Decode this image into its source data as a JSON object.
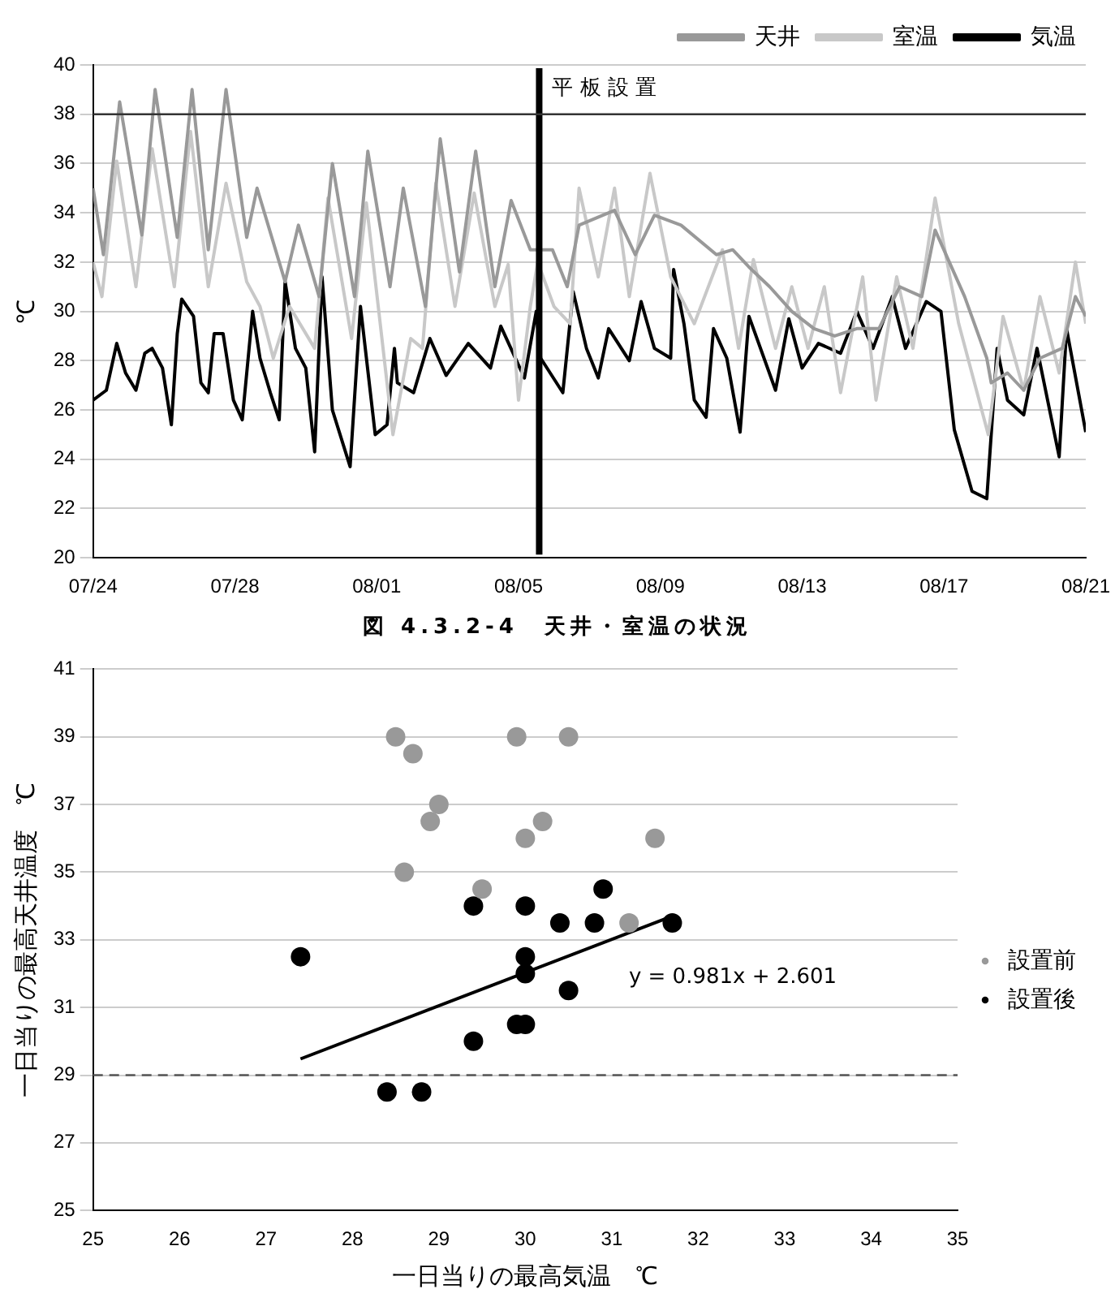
{
  "chart_data": [
    {
      "type": "line",
      "ylabel": "℃",
      "xlim": [
        "--07-24",
        "--08-21"
      ],
      "xticks": [
        {
          "value": "--07-24",
          "label": "07/24"
        },
        {
          "value": "--07-28",
          "label": "07/28"
        },
        {
          "value": "--08-01",
          "label": "08/01"
        },
        {
          "value": "--08-05",
          "label": "08/05"
        },
        {
          "value": "--08-09",
          "label": "08/09"
        },
        {
          "value": "--08-13",
          "label": "08/13"
        },
        {
          "value": "--08-17",
          "label": "08/17"
        },
        {
          "value": "--08-21",
          "label": "08/21"
        }
      ],
      "ylim": [
        20,
        40
      ],
      "yticks": [
        20,
        22,
        24,
        26,
        28,
        30,
        32,
        34,
        36,
        38,
        40
      ],
      "grid": "y",
      "legend": "top right",
      "ref_lines": [
        {
          "axis": "x",
          "value": "--08-05T14:00",
          "label": "平板設置",
          "color": "#000000"
        },
        {
          "axis": "y",
          "value": 38,
          "color": "#333333"
        }
      ],
      "annotations": [
        "図 4.3.2-4　天井・室温の状況"
      ],
      "series": [
        {
          "name": "天井",
          "color": "#999999",
          "x": [
            "--07-24T00:00",
            "--07-24T07:00",
            "--07-24T18:00",
            "--07-25T09:00",
            "--07-25T18:00",
            "--07-26T09:00",
            "--07-26T19:00",
            "--07-27T06:00",
            "--07-27T18:00",
            "--07-28T08:00",
            "--07-28T15:00",
            "--07-29T10:00",
            "--07-29T19:00",
            "--07-30T09:00",
            "--07-30T18:00",
            "--07-31T09:00",
            "--07-31T18:00",
            "--08-01T09:00",
            "--08-01T18:00",
            "--08-02T09:00",
            "--08-02T19:00",
            "--08-03T08:00",
            "--08-03T19:00",
            "--08-04T08:00",
            "--08-04T19:00",
            "--08-05T08:00",
            "--08-05T23:00",
            "--08-06T09:00",
            "--08-06T17:00",
            "--08-07T17:00",
            "--08-08T07:00",
            "--08-08T20:00",
            "--08-09T14:00",
            "--08-10T14:00",
            "--08-11T01:00",
            "--08-11T12:00",
            "--08-12T02:00",
            "--08-12T17:00",
            "--08-13T08:00",
            "--08-13T22:00",
            "--08-14T13:00",
            "--08-15T04:00",
            "--08-15T18:00",
            "--08-16T09:00",
            "--08-16T18:00",
            "--08-17T14:00",
            "--08-18T05:00",
            "--08-18T08:00",
            "--08-18T19:00",
            "--08-19T06:00",
            "--08-19T17:00",
            "--08-20T08:00",
            "--08-20T17:00",
            "--08-21T00:00"
          ],
          "values": [
            35,
            32.3,
            38.5,
            33.1,
            39,
            33,
            39,
            32.5,
            39,
            33,
            35,
            31.2,
            33.5,
            30.6,
            36,
            30.6,
            36.5,
            31,
            35,
            30.2,
            37,
            31.6,
            36.5,
            31,
            34.5,
            32.5,
            32.5,
            31,
            33.5,
            34.1,
            32.3,
            33.9,
            33.5,
            32.3,
            32.5,
            31.8,
            31,
            30,
            29.3,
            29,
            29.3,
            29.3,
            31,
            30.6,
            33.3,
            30.6,
            28.1,
            27.1,
            27.5,
            26.8,
            28.1,
            28.5,
            30.6,
            29.8
          ]
        },
        {
          "name": "室温",
          "color": "#c8c8c8",
          "x": [
            "--07-24T00:00",
            "--07-24T06:00",
            "--07-24T16:00",
            "--07-25T05:00",
            "--07-25T16:00",
            "--07-26T07:00",
            "--07-26T18:00",
            "--07-27T06:00",
            "--07-27T18:00",
            "--07-28T08:00",
            "--07-28T17:00",
            "--07-29T02:00",
            "--07-29T13:00",
            "--07-30T06:00",
            "--07-30T15:00",
            "--07-31T07:00",
            "--07-31T17:00",
            "--08-01T11:00",
            "--08-01T23:00",
            "--08-02T07:00",
            "--08-02T16:00",
            "--08-03T05:00",
            "--08-03T18:00",
            "--08-04T08:00",
            "--08-04T17:00",
            "--08-05T00:00",
            "--08-05T08:00",
            "--08-05T13:00",
            "--08-06T00:00",
            "--08-06T11:00",
            "--08-06T17:00",
            "--08-07T06:00",
            "--08-07T17:00",
            "--08-08T03:00",
            "--08-08T17:00",
            "--08-09T07:00",
            "--08-09T23:00",
            "--08-10T18:00",
            "--08-11T05:00",
            "--08-11T15:00",
            "--08-12T06:00",
            "--08-12T17:00",
            "--08-13T04:00",
            "--08-13T15:00",
            "--08-14T02:00",
            "--08-14T17:00",
            "--08-15T02:00",
            "--08-15T16:00",
            "--08-16T03:00",
            "--08-16T18:00",
            "--08-17T10:00",
            "--08-18T06:00",
            "--08-18T16:00",
            "--08-19T06:00",
            "--08-19T17:00",
            "--08-20T06:00",
            "--08-20T17:00",
            "--08-21T00:00"
          ],
          "values": [
            32,
            30.6,
            36.1,
            31,
            36.6,
            31,
            37.3,
            31,
            35.2,
            31.2,
            30.2,
            28.1,
            30.2,
            28.5,
            34.6,
            28.9,
            34.4,
            25,
            28.9,
            28.5,
            35.2,
            30.2,
            34.8,
            30.2,
            31.9,
            26.4,
            30.2,
            32,
            30.2,
            29.5,
            35,
            31.4,
            35,
            30.6,
            35.6,
            31.4,
            29.5,
            32.5,
            28.5,
            32.1,
            28.5,
            31,
            28.5,
            31,
            26.7,
            31.4,
            26.4,
            31.4,
            28.5,
            34.6,
            29.5,
            25,
            29.8,
            26.8,
            30.6,
            27.5,
            32,
            29.5
          ]
        },
        {
          "name": "気温",
          "color": "#000000",
          "x": [
            "--07-24T00:00",
            "--07-24T09:00",
            "--07-24T16:00",
            "--07-24T22:00",
            "--07-25T05:00",
            "--07-25T11:00",
            "--07-25T16:00",
            "--07-25T23:00",
            "--07-26T05:00",
            "--07-26T09:00",
            "--07-26T12:00",
            "--07-26T20:00",
            "--07-27T01:00",
            "--07-27T06:00",
            "--07-27T10:00",
            "--07-27T16:00",
            "--07-27T23:00",
            "--07-28T05:00",
            "--07-28T12:00",
            "--07-28T17:00",
            "--07-29T00:00",
            "--07-29T06:00",
            "--07-29T10:00",
            "--07-29T17:00",
            "--07-30T00:00",
            "--07-30T06:00",
            "--07-30T11:00",
            "--07-30T18:00",
            "--07-31T06:00",
            "--07-31T13:00",
            "--07-31T23:00",
            "--08-01T07:00",
            "--08-01T12:00",
            "--08-01T14:00",
            "--08-02T01:00",
            "--08-02T12:00",
            "--08-02T23:00",
            "--08-03T14:00",
            "--08-04T05:00",
            "--08-04T12:00",
            "--08-05T04:00",
            "--08-05T12:00",
            "--08-05T15:00",
            "--08-06T06:00",
            "--08-06T13:00",
            "--08-06T22:00",
            "--08-07T06:00",
            "--08-07T13:00",
            "--08-08T03:00",
            "--08-08T11:00",
            "--08-08T20:00",
            "--08-09T07:00",
            "--08-09T09:00",
            "--08-09T16:00",
            "--08-09T23:00",
            "--08-10T07:00",
            "--08-10T12:00",
            "--08-10T21:00",
            "--08-11T06:00",
            "--08-11T12:00",
            "--08-12T06:00",
            "--08-12T15:00",
            "--08-13T00:00",
            "--08-13T11:00",
            "--08-14T02:00",
            "--08-14T13:00",
            "--08-15T00:00",
            "--08-15T13:00",
            "--08-15T22:00",
            "--08-16T12:00",
            "--08-16T22:00",
            "--08-17T07:00",
            "--08-17T19:00",
            "--08-18T05:00",
            "--08-18T12:00",
            "--08-18T19:00",
            "--08-19T06:00",
            "--08-19T15:00",
            "--08-20T06:00",
            "--08-20T11:00",
            "--08-21T00:00"
          ],
          "values": [
            26.4,
            26.8,
            28.7,
            27.5,
            26.8,
            28.3,
            28.5,
            27.7,
            25.4,
            29.1,
            30.5,
            29.8,
            27.1,
            26.7,
            29.1,
            29.1,
            26.4,
            25.6,
            30,
            28.1,
            26.7,
            25.6,
            31.2,
            28.5,
            27.7,
            24.3,
            31.4,
            26,
            23.7,
            30.2,
            25,
            25.4,
            28.5,
            27.1,
            26.7,
            28.9,
            27.4,
            28.7,
            27.7,
            29.4,
            27.3,
            30,
            28.1,
            26.7,
            30.8,
            28.5,
            27.3,
            29.3,
            28,
            30.4,
            28.5,
            28.1,
            31.7,
            29.5,
            26.4,
            25.7,
            29.3,
            28.1,
            25.1,
            29.8,
            26.8,
            29.7,
            27.7,
            28.7,
            28.3,
            30,
            28.5,
            30.6,
            28.5,
            30.4,
            30,
            25.2,
            22.7,
            22.4,
            28.5,
            26.4,
            25.8,
            28.5,
            24.1,
            29.3,
            25.1
          ]
        }
      ]
    },
    {
      "type": "scatter",
      "xlabel": "一日当りの最高気温　℃",
      "ylabel": "一日当りの最高天井温度　℃",
      "xlim": [
        25,
        35
      ],
      "xticks": [
        25,
        26,
        27,
        28,
        29,
        30,
        31,
        32,
        33,
        34,
        35
      ],
      "ylim": [
        25,
        41
      ],
      "yticks": [
        25,
        27,
        29,
        31,
        33,
        35,
        37,
        39,
        41
      ],
      "grid": "y",
      "legend": "right",
      "marker": "circle",
      "ref_lines": [
        {
          "axis": "y",
          "value": 29,
          "color": "#555555",
          "line_style": "dashed"
        }
      ],
      "annotations": [
        "y = 0.981x + 2.601"
      ],
      "series": [
        {
          "name": "設置前",
          "color": "#999999",
          "x": [
            28.5,
            28.7,
            29,
            28.9,
            28.6,
            29.9,
            30.5,
            30,
            30.2,
            31.5,
            29.5,
            31.2
          ],
          "values": [
            39,
            38.5,
            37,
            36.5,
            35,
            39,
            39,
            36,
            36.5,
            36,
            34.5,
            33.5
          ]
        },
        {
          "name": "設置後",
          "color": "#000000",
          "x": [
            27.4,
            28.4,
            28.8,
            29.4,
            29.4,
            29.9,
            30,
            30,
            30,
            30,
            30.4,
            30.5,
            30.8,
            30.9,
            31.7
          ],
          "values": [
            32.5,
            28.5,
            28.5,
            34,
            30,
            30.5,
            30.5,
            34,
            32.5,
            32,
            33.5,
            31.5,
            33.5,
            34.5,
            33.5
          ]
        },
        {
          "type": "line",
          "color": "#000000",
          "marker": "none",
          "x": [
            27.4,
            31.7
          ],
          "values": [
            29.48,
            33.7
          ]
        }
      ]
    }
  ]
}
